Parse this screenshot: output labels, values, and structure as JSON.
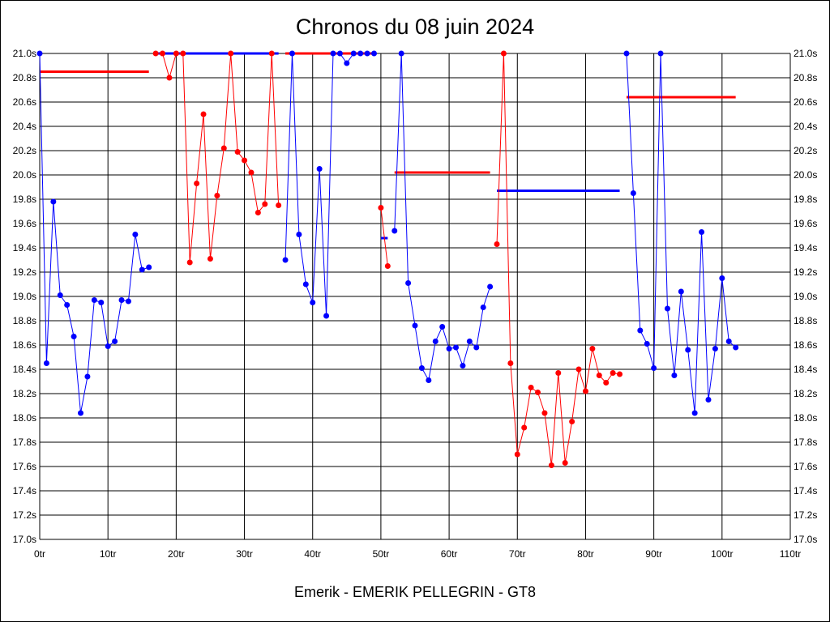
{
  "chart_data": {
    "type": "line",
    "title": "Chronos du 08 juin 2024",
    "footer": "Emerik - EMERIK PELLEGRIN - GT8",
    "xlabel": "",
    "ylabel": "",
    "xlim": [
      0,
      110
    ],
    "ylim": [
      17.0,
      21.0
    ],
    "grid": true,
    "x_ticks": [
      "0tr",
      "10tr",
      "20tr",
      "30tr",
      "40tr",
      "50tr",
      "60tr",
      "70tr",
      "80tr",
      "90tr",
      "100tr",
      "110tr"
    ],
    "y_ticks": [
      "17.0s",
      "17.2s",
      "17.4s",
      "17.6s",
      "17.8s",
      "18.0s",
      "18.2s",
      "18.4s",
      "18.6s",
      "18.8s",
      "19.0s",
      "19.2s",
      "19.4s",
      "19.6s",
      "19.8s",
      "20.0s",
      "20.2s",
      "20.4s",
      "20.6s",
      "20.8s",
      "21.0s"
    ],
    "colors": {
      "blue": "#0000ff",
      "red": "#ff0000"
    },
    "segments": [
      {
        "color": "blue",
        "start_lap": 0,
        "values": [
          21.0,
          18.45,
          19.78,
          19.01,
          18.93,
          18.67,
          18.04,
          18.34,
          18.97,
          18.95,
          18.59,
          18.63,
          18.97,
          18.96,
          19.51,
          19.22,
          19.24
        ]
      },
      {
        "color": "red",
        "start_lap": 17,
        "values": [
          21.0,
          21.0,
          20.8,
          21.0,
          21.0,
          19.28,
          19.93,
          20.5,
          19.31,
          19.83,
          20.22,
          21.0,
          20.19,
          20.12,
          20.02,
          19.69,
          19.76,
          21.0,
          19.75
        ]
      },
      {
        "color": "blue",
        "start_lap": 36,
        "values": [
          19.3,
          21.0,
          19.51,
          19.1,
          18.95,
          20.05,
          18.84,
          21.0,
          21.0,
          20.92,
          21.0,
          21.0,
          21.0,
          21.0
        ]
      },
      {
        "color": "red",
        "start_lap": 50,
        "values": [
          19.73,
          19.25
        ]
      },
      {
        "color": "blue",
        "start_lap": 52,
        "values": [
          19.54,
          21.0,
          19.11,
          18.76,
          18.41,
          18.31,
          18.63,
          18.75,
          18.57,
          18.58,
          18.43,
          18.63,
          18.58,
          18.91,
          19.08
        ]
      },
      {
        "color": "red",
        "start_lap": 67,
        "values": [
          19.43,
          21.0,
          18.45,
          17.7,
          17.92,
          18.25,
          18.21,
          18.04,
          17.61,
          18.37,
          17.63,
          17.97,
          18.4,
          18.22,
          18.57,
          18.35,
          18.29,
          18.37,
          18.36
        ]
      },
      {
        "color": "blue",
        "start_lap": 86,
        "values": [
          21.0,
          19.85,
          18.72,
          18.61,
          18.41,
          21.0,
          18.9,
          18.35,
          19.04,
          18.56,
          18.04,
          19.53,
          18.15,
          18.57,
          19.15,
          18.63,
          18.58
        ]
      }
    ],
    "means": [
      {
        "color": "red",
        "from": 0,
        "to": 16,
        "value": 20.85
      },
      {
        "color": "blue",
        "from": 17,
        "to": 35,
        "value": 21.0
      },
      {
        "color": "red",
        "from": 36,
        "to": 49,
        "value": 21.0
      },
      {
        "color": "blue",
        "from": 50,
        "to": 51,
        "value": 19.48
      },
      {
        "color": "red",
        "from": 52,
        "to": 66,
        "value": 20.02
      },
      {
        "color": "blue",
        "from": 67,
        "to": 85,
        "value": 19.87
      },
      {
        "color": "red",
        "from": 86,
        "to": 102,
        "value": 20.64
      }
    ]
  }
}
